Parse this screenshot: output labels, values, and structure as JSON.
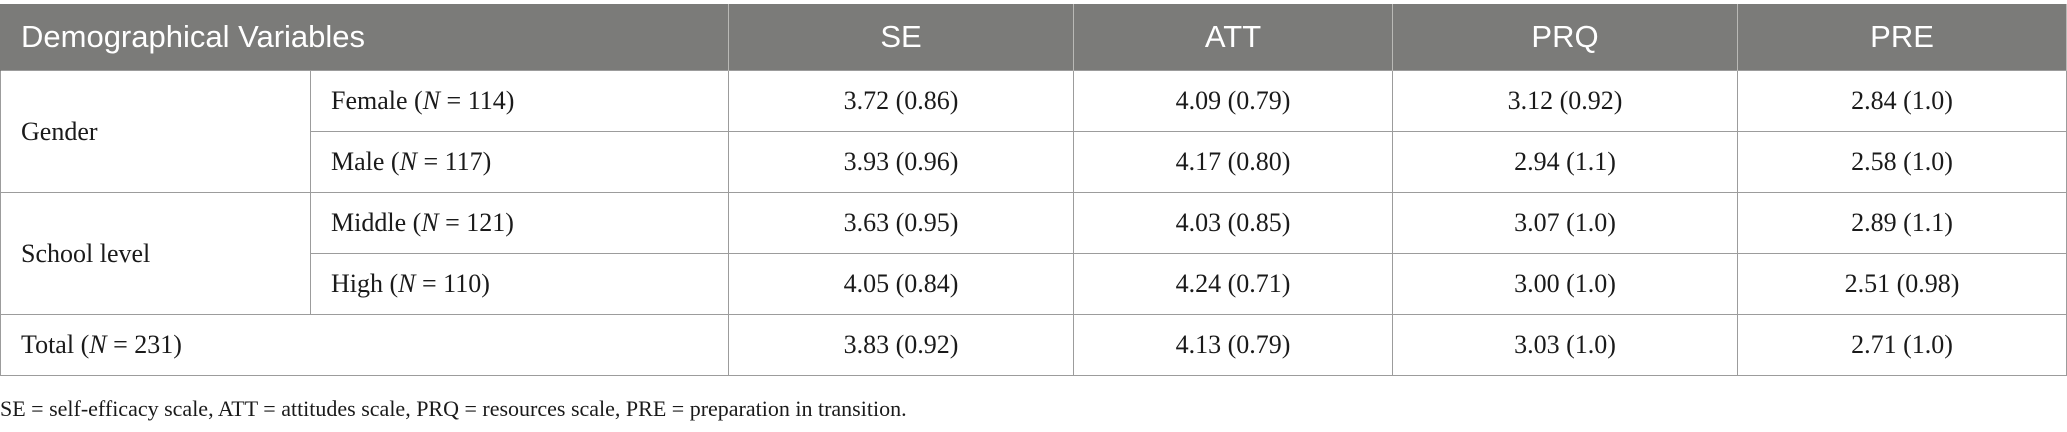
{
  "table": {
    "headers": [
      "Demographical Variables",
      "SE",
      "ATT",
      "PRQ",
      "PRE"
    ],
    "groups": [
      {
        "label": "Gender",
        "rows": [
          {
            "sub": "Female",
            "n_label": "N",
            "n_eq": " = 114)",
            "values": [
              "3.72 (0.86)",
              "4.09 (0.79)",
              "3.12 (0.92)",
              "2.84 (1.0)"
            ]
          },
          {
            "sub": "Male",
            "n_label": "N",
            "n_eq": " = 117)",
            "values": [
              "3.93 (0.96)",
              "4.17 (0.80)",
              "2.94 (1.1)",
              "2.58 (1.0)"
            ]
          }
        ]
      },
      {
        "label": "School level",
        "rows": [
          {
            "sub": "Middle",
            "n_label": "N",
            "n_eq": " = 121)",
            "values": [
              "3.63 (0.95)",
              "4.03 (0.85)",
              "3.07 (1.0)",
              "2.89 (1.1)"
            ]
          },
          {
            "sub": "High",
            "n_label": "N",
            "n_eq": " = 110)",
            "values": [
              "4.05 (0.84)",
              "4.24 (0.71)",
              "3.00 (1.0)",
              "2.51 (0.98)"
            ]
          }
        ]
      }
    ],
    "total": {
      "label": "Total",
      "n_label": "N",
      "n_eq": " = 231)",
      "values": [
        "3.83 (0.92)",
        "4.13 (0.79)",
        "3.03 (1.0)",
        "2.71 (1.0)"
      ]
    }
  },
  "footnote": "SE = self-efficacy scale, ATT = attitudes scale, PRQ = resources scale, PRE = preparation in transition."
}
